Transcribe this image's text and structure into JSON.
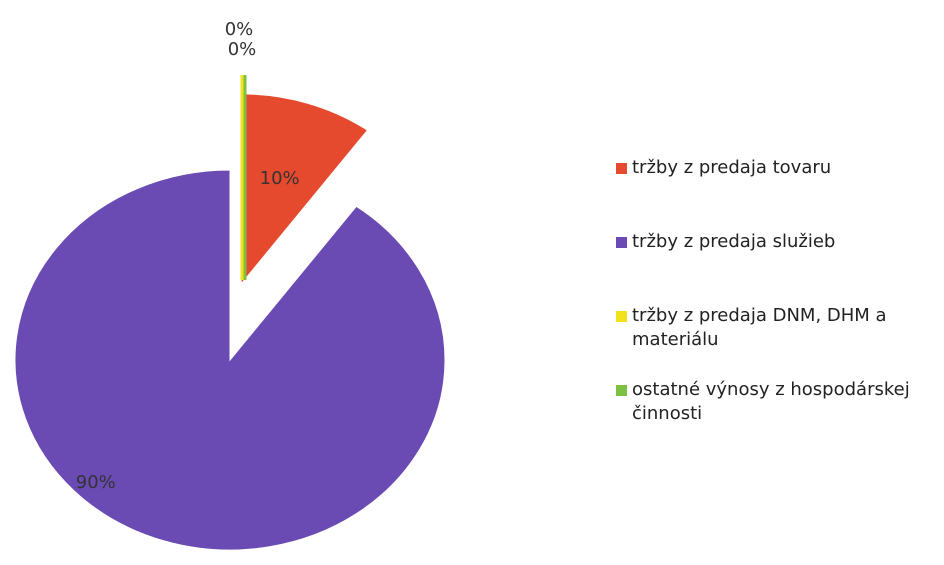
{
  "chart_data": {
    "type": "pie",
    "series": [
      {
        "name": "tržby z predaja tovaru",
        "color": "#e64a2e",
        "values": [
          10
        ],
        "value_labels": [
          "10%"
        ]
      },
      {
        "name": "tržby z predaja služieb",
        "color": "#6a4bb3",
        "values": [
          90
        ],
        "value_labels": [
          "90%"
        ]
      },
      {
        "name": "tržby z predaja DNM, DHM a materiálu",
        "color": "#f2e21c",
        "values": [
          0
        ],
        "value_labels": [
          "0%"
        ]
      },
      {
        "name": "ostatné výnosy z hospodárskej činnosti",
        "color": "#7cc142",
        "values": [
          0
        ],
        "value_labels": [
          "0%"
        ]
      }
    ],
    "legend": "right"
  }
}
